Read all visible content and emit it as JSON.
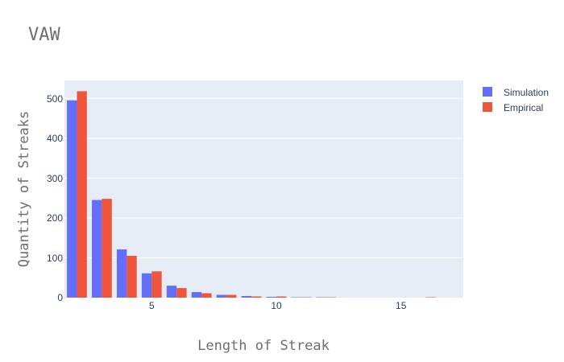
{
  "chart_data": {
    "type": "bar",
    "title": "VAW",
    "xlabel": "Length of Streak",
    "ylabel": "Quantity of Streaks",
    "x": [
      2,
      3,
      4,
      5,
      6,
      7,
      8,
      9,
      10,
      11,
      12,
      13,
      14,
      15,
      16,
      17
    ],
    "series": [
      {
        "name": "Simulation",
        "color": "#636efa",
        "values": [
          495,
          245,
          121,
          61,
          30,
          14,
          7,
          4,
          2,
          1,
          1,
          0,
          0,
          0,
          0,
          0
        ]
      },
      {
        "name": "Empirical",
        "color": "#ef553b",
        "values": [
          518,
          248,
          105,
          66,
          24,
          11,
          7,
          3,
          3,
          1,
          1,
          0,
          0,
          0,
          1,
          0
        ]
      }
    ],
    "xlim": [
      1.5,
      17.5
    ],
    "ylim": [
      0,
      545
    ],
    "xticks": [
      "5",
      "10",
      "15"
    ],
    "yticks": [
      "0",
      "100",
      "200",
      "300",
      "400",
      "500"
    ],
    "grid": true,
    "legend_position": "top-right",
    "plot_bgcolor": "#e5ecf6"
  }
}
